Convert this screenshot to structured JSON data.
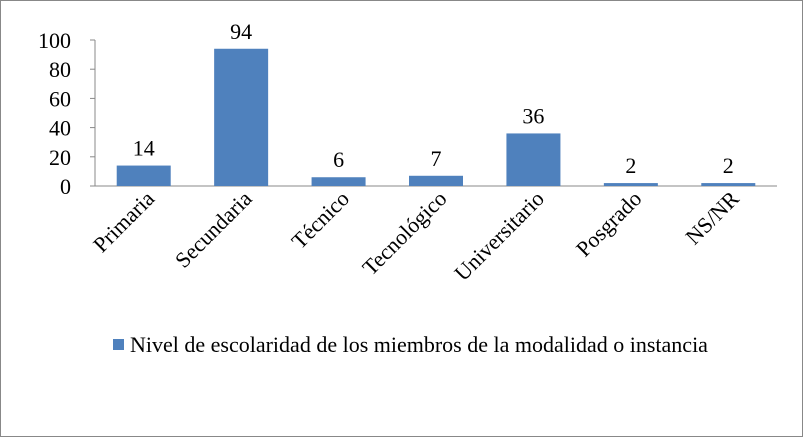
{
  "chart_data": {
    "type": "bar",
    "categories": [
      "Primaria",
      "Secundaria",
      "Técnico",
      "Tecnológico",
      "Universitario",
      "Posgrado",
      "NS/NR"
    ],
    "series": [
      {
        "name": "Nivel de escolaridad de los miembros de la modalidad o instancia",
        "color": "#4f81bd",
        "values": [
          14,
          94,
          6,
          7,
          36,
          2,
          2
        ]
      }
    ],
    "ylim": [
      0,
      100
    ],
    "yticks": [
      0,
      20,
      40,
      60,
      80,
      100
    ],
    "grid": false,
    "legend": "bottom"
  }
}
